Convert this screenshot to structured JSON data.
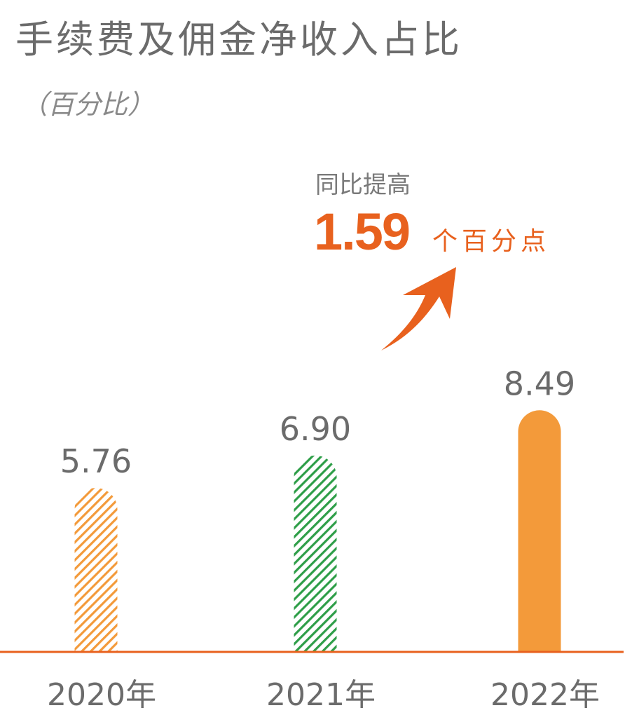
{
  "chart_data": {
    "type": "bar",
    "title": "手续费及佣金净收入占比",
    "subtitle": "（百分比）",
    "categories": [
      "2020年",
      "2021年",
      "2022年"
    ],
    "values": [
      5.76,
      6.9,
      8.49
    ],
    "value_labels": [
      "5.76",
      "6.90",
      "8.49"
    ],
    "bar_styles": [
      {
        "fill": "hatched",
        "color": "#f39a3a"
      },
      {
        "fill": "hatched",
        "color": "#2e9e48"
      },
      {
        "fill": "solid",
        "color": "#f39a3a"
      }
    ],
    "ylim": [
      0,
      9
    ],
    "grid": false,
    "axis_color": "#e8611e",
    "annotation": {
      "label": "同比提高",
      "value": "1.59",
      "unit": "个百分点",
      "color": "#e8611e",
      "icon": "curved-up-arrow-icon"
    }
  }
}
